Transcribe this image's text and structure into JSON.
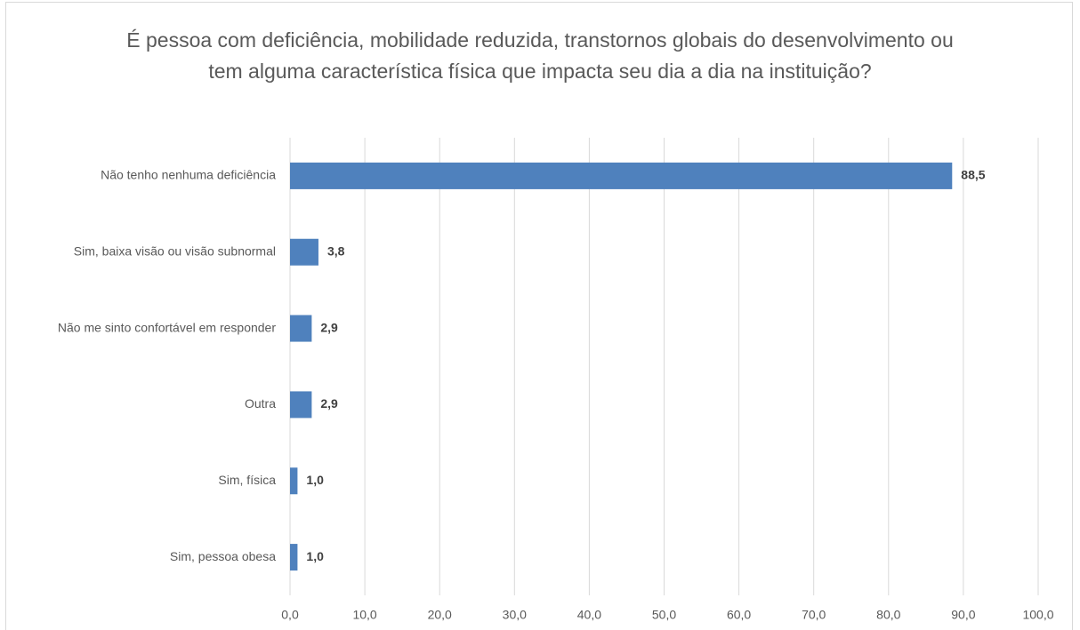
{
  "chart_data": {
    "type": "bar",
    "orientation": "horizontal",
    "title": "É pessoa com deficiência, mobilidade reduzida, transtornos globais do desenvolvimento ou tem alguma característica física que impacta seu dia a dia na instituição?",
    "categories": [
      "Não tenho nenhuma deficiência",
      "Sim, baixa visão ou visão subnormal",
      "Não me sinto confortável em responder",
      "Outra",
      "Sim, física",
      "Sim, pessoa obesa"
    ],
    "values": [
      88.5,
      3.8,
      2.9,
      2.9,
      1.0,
      1.0
    ],
    "value_labels": [
      "88,5",
      "3,8",
      "2,9",
      "2,9",
      "1,0",
      "1,0"
    ],
    "color": "#4f81bd",
    "xlim": [
      0,
      100
    ],
    "xticks": [
      {
        "value": 0,
        "label": "0,0"
      },
      {
        "value": 10,
        "label": "10,0"
      },
      {
        "value": 20,
        "label": "20,0"
      },
      {
        "value": 30,
        "label": "30,0"
      },
      {
        "value": 40,
        "label": "40,0"
      },
      {
        "value": 50,
        "label": "50,0"
      },
      {
        "value": 60,
        "label": "60,0"
      },
      {
        "value": 70,
        "label": "70,0"
      },
      {
        "value": 80,
        "label": "80,0"
      },
      {
        "value": 90,
        "label": "90,0"
      },
      {
        "value": 100,
        "label": "100,0"
      }
    ],
    "grid": true
  }
}
